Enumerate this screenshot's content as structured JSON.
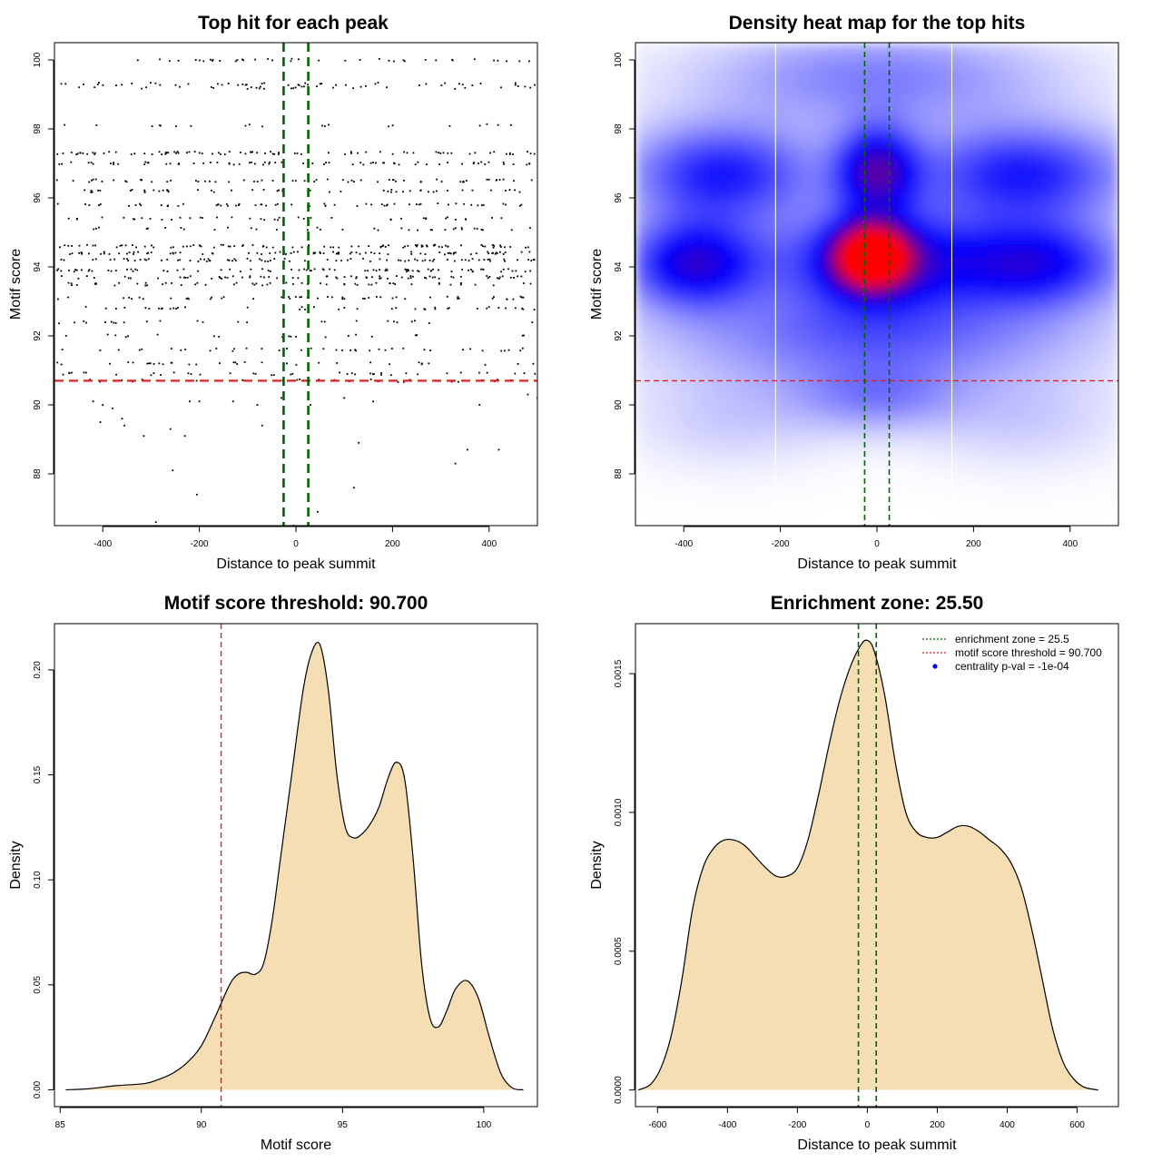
{
  "colors": {
    "green": "#006400",
    "red": "#dd2222",
    "fill": "#f5deb3",
    "blue": "#0000ff",
    "heat_red": "#ff0000"
  },
  "chart_data": [
    {
      "id": "top-hit",
      "type": "scatter",
      "title": "Top hit for each peak",
      "xlabel": "Distance to peak summit",
      "ylabel": "Motif score",
      "xlim": [
        -500,
        500
      ],
      "ylim": [
        86.5,
        100.5
      ],
      "x_ticks": [
        -400,
        -200,
        0,
        200,
        400
      ],
      "x_tick_labels": [
        "-400",
        "-200",
        "0",
        "200",
        "400"
      ],
      "y_ticks": [
        88,
        90,
        92,
        94,
        96,
        98,
        100
      ],
      "y_tick_labels": [
        "88",
        "90",
        "92",
        "94",
        "96",
        "98",
        "100"
      ],
      "vlines": [
        -25.5,
        25.5
      ],
      "hline": 90.7,
      "score_levels": [
        100,
        99.3,
        99.2,
        98.1,
        97.3,
        97.0,
        96.5,
        96.2,
        95.8,
        95.4,
        95.1,
        94.6,
        94.4,
        94.2,
        93.9,
        93.7,
        93.5,
        93.1,
        92.8,
        92.4,
        92.0,
        91.6,
        91.2,
        90.9,
        90.7
      ],
      "level_counts": [
        40,
        45,
        30,
        20,
        85,
        70,
        60,
        50,
        60,
        40,
        35,
        90,
        85,
        80,
        80,
        70,
        55,
        50,
        40,
        25,
        20,
        40,
        35,
        40,
        30
      ],
      "low_points": [
        {
          "x": -420,
          "y": 90.1
        },
        {
          "x": -400,
          "y": 90.0
        },
        {
          "x": -380,
          "y": 89.9
        },
        {
          "x": -405,
          "y": 89.5
        },
        {
          "x": -360,
          "y": 89.6
        },
        {
          "x": -355,
          "y": 89.4
        },
        {
          "x": -315,
          "y": 89.1
        },
        {
          "x": -260,
          "y": 89.3
        },
        {
          "x": -230,
          "y": 89.1
        },
        {
          "x": -220,
          "y": 90.1
        },
        {
          "x": -200,
          "y": 90.1
        },
        {
          "x": -130,
          "y": 90.1
        },
        {
          "x": -80,
          "y": 90.0
        },
        {
          "x": -70,
          "y": 89.4
        },
        {
          "x": -30,
          "y": 90.2
        },
        {
          "x": 30,
          "y": 90.0
        },
        {
          "x": 100,
          "y": 90.2
        },
        {
          "x": 160,
          "y": 90.1
        },
        {
          "x": 380,
          "y": 90.0
        },
        {
          "x": 480,
          "y": 90.3
        },
        {
          "x": 500,
          "y": 90.2
        },
        {
          "x": -255,
          "y": 88.1
        },
        {
          "x": -205,
          "y": 87.4
        },
        {
          "x": -290,
          "y": 86.6
        },
        {
          "x": 120,
          "y": 87.6
        },
        {
          "x": 130,
          "y": 88.9
        },
        {
          "x": 330,
          "y": 88.3
        },
        {
          "x": 355,
          "y": 88.7
        },
        {
          "x": 420,
          "y": 88.7
        },
        {
          "x": 45,
          "y": 86.9
        },
        {
          "x": -5,
          "y": 86.5
        }
      ]
    },
    {
      "id": "heatmap",
      "type": "heatmap",
      "title": "Density heat map for the top hits",
      "xlabel": "Distance to peak summit",
      "ylabel": "Motif score",
      "xlim": [
        -500,
        500
      ],
      "ylim": [
        86.5,
        100.5
      ],
      "x_ticks": [
        -400,
        -200,
        0,
        200,
        400
      ],
      "x_tick_labels": [
        "-400",
        "-200",
        "0",
        "200",
        "400"
      ],
      "y_ticks": [
        88,
        90,
        92,
        94,
        96,
        98,
        100
      ],
      "y_tick_labels": [
        "88",
        "90",
        "92",
        "94",
        "96",
        "98",
        "100"
      ],
      "vlines_green": [
        -25.5,
        25.5
      ],
      "vlines_white": [
        -210,
        155
      ],
      "hline": 90.7,
      "blobs": [
        {
          "x": -10,
          "y": 94.3,
          "sx": 50,
          "sy": 0.6,
          "w": 1.0
        },
        {
          "x": 0,
          "y": 94.2,
          "sx": 140,
          "sy": 1.0,
          "w": 0.55
        },
        {
          "x": -380,
          "y": 94.1,
          "sx": 100,
          "sy": 0.9,
          "w": 0.55
        },
        {
          "x": 330,
          "y": 94.1,
          "sx": 130,
          "sy": 0.9,
          "w": 0.5
        },
        {
          "x": -320,
          "y": 96.7,
          "sx": 140,
          "sy": 1.0,
          "w": 0.45
        },
        {
          "x": 300,
          "y": 96.7,
          "sx": 160,
          "sy": 1.0,
          "w": 0.45
        },
        {
          "x": 0,
          "y": 96.8,
          "sx": 60,
          "sy": 0.9,
          "w": 0.55
        },
        {
          "x": 0,
          "y": 99.5,
          "sx": 260,
          "sy": 1.0,
          "w": 0.25
        },
        {
          "x": 0,
          "y": 92.0,
          "sx": 300,
          "sy": 1.0,
          "w": 0.3
        },
        {
          "x": 0,
          "y": 90.2,
          "sx": 120,
          "sy": 0.7,
          "w": 0.2
        },
        {
          "x": -300,
          "y": 89.6,
          "sx": 150,
          "sy": 1.0,
          "w": 0.1
        },
        {
          "x": 300,
          "y": 89.6,
          "sx": 150,
          "sy": 1.0,
          "w": 0.1
        }
      ]
    },
    {
      "id": "score-density",
      "type": "area",
      "title": "Motif score threshold: 90.700",
      "xlabel": "Motif score",
      "ylabel": "Density",
      "xlim": [
        84.8,
        101.9
      ],
      "ylim": [
        -0.008,
        0.222
      ],
      "x_ticks": [
        85,
        90,
        95,
        100
      ],
      "x_tick_labels": [
        "85",
        "90",
        "95",
        "100"
      ],
      "y_ticks": [
        0.0,
        0.05,
        0.1,
        0.15,
        0.2
      ],
      "y_tick_labels": [
        "0.00",
        "0.05",
        "0.10",
        "0.15",
        "0.20"
      ],
      "vline": 90.7,
      "x": [
        85.2,
        86.0,
        87.0,
        88.0,
        88.5,
        89.0,
        89.5,
        90.0,
        90.5,
        91.0,
        91.3,
        91.6,
        91.9,
        92.2,
        92.5,
        92.8,
        93.2,
        93.6,
        93.9,
        94.2,
        94.5,
        94.8,
        95.1,
        95.4,
        95.7,
        96.0,
        96.3,
        96.6,
        96.9,
        97.2,
        97.5,
        97.8,
        98.1,
        98.4,
        98.7,
        99.0,
        99.4,
        99.8,
        100.2,
        100.6,
        101.0,
        101.4
      ],
      "values": [
        0.0,
        0.0005,
        0.002,
        0.003,
        0.005,
        0.008,
        0.013,
        0.021,
        0.035,
        0.05,
        0.055,
        0.056,
        0.055,
        0.06,
        0.08,
        0.11,
        0.15,
        0.19,
        0.208,
        0.212,
        0.19,
        0.15,
        0.125,
        0.12,
        0.122,
        0.127,
        0.135,
        0.148,
        0.156,
        0.148,
        0.11,
        0.06,
        0.034,
        0.03,
        0.038,
        0.048,
        0.052,
        0.044,
        0.025,
        0.008,
        0.001,
        0.0
      ]
    },
    {
      "id": "distance-density",
      "type": "area",
      "title": "Enrichment zone: 25.50",
      "xlabel": "Distance to peak summit",
      "ylabel": "Density",
      "xlim": [
        -663,
        718
      ],
      "ylim": [
        -6e-05,
        0.00168
      ],
      "x_ticks": [
        -600,
        -400,
        -200,
        0,
        200,
        400,
        600
      ],
      "x_tick_labels": [
        "-600",
        "-400",
        "-200",
        "0",
        "200",
        "400",
        "600"
      ],
      "y_ticks": [
        0.0,
        0.0005,
        0.001,
        0.0015
      ],
      "y_tick_labels": [
        "0.0000",
        "0.0005",
        "0.0010",
        "0.0015"
      ],
      "vlines": [
        -25.5,
        25.5
      ],
      "x": [
        -655,
        -620,
        -590,
        -560,
        -530,
        -500,
        -470,
        -440,
        -410,
        -380,
        -350,
        -320,
        -290,
        -260,
        -230,
        -200,
        -170,
        -140,
        -110,
        -80,
        -50,
        -20,
        0,
        20,
        50,
        80,
        110,
        140,
        170,
        200,
        230,
        260,
        290,
        320,
        350,
        380,
        410,
        440,
        470,
        500,
        530,
        560,
        590,
        620,
        660
      ],
      "values": [
        0.0,
        2e-05,
        8e-05,
        0.0002,
        0.0004,
        0.00065,
        0.0008,
        0.00087,
        0.0009,
        0.0009,
        0.00088,
        0.00084,
        0.0008,
        0.00077,
        0.00077,
        0.0008,
        0.0009,
        0.00106,
        0.00124,
        0.0014,
        0.00152,
        0.0016,
        0.00162,
        0.00158,
        0.00142,
        0.00118,
        0.001,
        0.00093,
        0.00091,
        0.00091,
        0.00093,
        0.00095,
        0.00095,
        0.00093,
        0.0009,
        0.00087,
        0.00082,
        0.00073,
        0.00058,
        0.0004,
        0.00022,
        0.0001,
        4e-05,
        1e-05,
        0.0
      ],
      "legend": [
        {
          "label": "enrichment zone = 25.5",
          "color": "#006400",
          "symbol": "line"
        },
        {
          "label": "motif score threshold = 90.700",
          "color": "#dd2222",
          "symbol": "line"
        },
        {
          "label": "centrality p-val = -1e-04",
          "color": "#0000ff",
          "symbol": "dot"
        }
      ]
    }
  ]
}
